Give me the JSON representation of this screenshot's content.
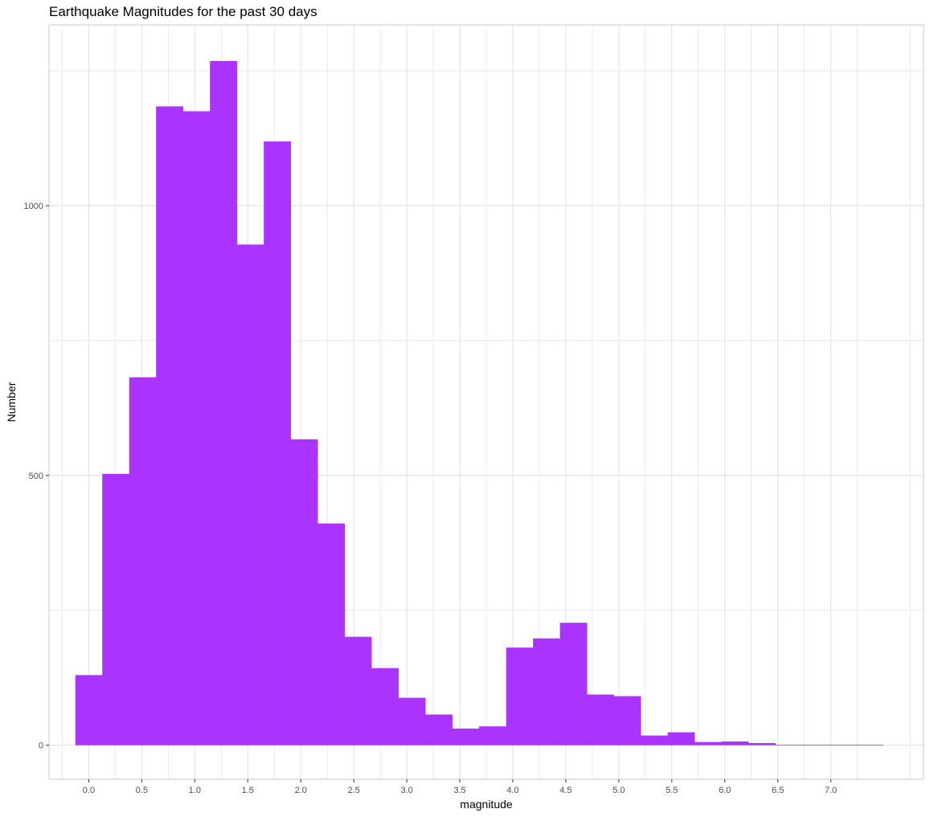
{
  "chart_data": {
    "type": "bar",
    "title": "Earthquake Magnitudes for the past 30 days",
    "xlabel": "magnitude",
    "ylabel": "Number",
    "bar_color": "#AB33FF",
    "grid_color": "#DEDEDE",
    "panel_border_color": "#C8C8C8",
    "grid": true,
    "xlim": [
      -0.375,
      7.875
    ],
    "ylim": [
      -63,
      1335
    ],
    "x_ticks": [
      0.0,
      0.5,
      1.0,
      1.5,
      2.0,
      2.5,
      3.0,
      3.5,
      4.0,
      4.5,
      5.0,
      5.5,
      6.0,
      6.5,
      7.0
    ],
    "x_tick_labels": [
      "0.0",
      "0.5",
      "1.0",
      "1.5",
      "2.0",
      "2.5",
      "3.0",
      "3.5",
      "4.0",
      "4.5",
      "5.0",
      "5.5",
      "6.0",
      "6.5",
      "7.0"
    ],
    "y_ticks": [
      0,
      500,
      1000
    ],
    "y_tick_labels": [
      "0",
      "500",
      "1000"
    ],
    "bin_width": 0.254,
    "bin_start": -0.127,
    "values": [
      130,
      503,
      682,
      1184,
      1175,
      1268,
      928,
      1119,
      567,
      411,
      201,
      143,
      88,
      57,
      31,
      35,
      181,
      198,
      227,
      94,
      91,
      18,
      24,
      6,
      7,
      4,
      1,
      1,
      1,
      1
    ]
  }
}
